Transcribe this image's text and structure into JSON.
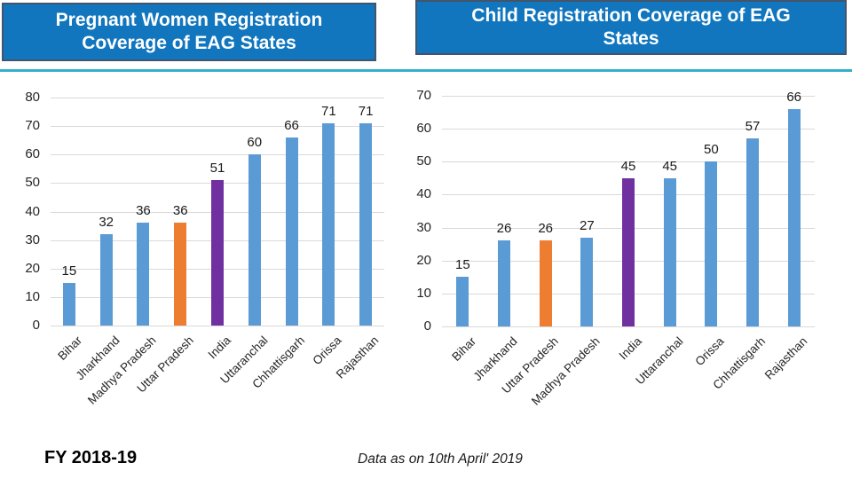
{
  "page": {
    "left_title": "Pregnant Women Registration\nCoverage of EAG States",
    "right_title": "Child Registration Coverage of EAG\nStates",
    "footer_left": "FY 2018-19",
    "footer_note": "Data as on 10th April' 2019"
  },
  "colors": {
    "title_bg": "#1176BE",
    "title_border": "#44546A",
    "divider": "#33AECD",
    "bar_default": "#5B9BD5",
    "bar_uttar_pradesh_highlight": "#ED7D31",
    "bar_india_highlight": "#7030A0",
    "gridline": "#D9D9D9"
  },
  "chart_data": [
    {
      "type": "bar",
      "title": "Pregnant Women Registration Coverage of EAG States",
      "categories": [
        "Bihar",
        "Jharkhand",
        "Madhya Pradesh",
        "Uttar Pradesh",
        "India",
        "Uttaranchal",
        "Chhattisgarh",
        "Orissa",
        "Rajasthan"
      ],
      "values": [
        15,
        32,
        36,
        36,
        51,
        60,
        66,
        71,
        71
      ],
      "bar_colors": [
        "#5B9BD5",
        "#5B9BD5",
        "#5B9BD5",
        "#ED7D31",
        "#7030A0",
        "#5B9BD5",
        "#5B9BD5",
        "#5B9BD5",
        "#5B9BD5"
      ],
      "xlabel": "",
      "ylabel": "",
      "ylim": [
        0,
        80
      ],
      "ytick_step": 10,
      "grid": true,
      "data_labels": true,
      "legend": false
    },
    {
      "type": "bar",
      "title": "Child Registration Coverage of EAG States",
      "categories": [
        "Bihar",
        "Jharkhand",
        "Uttar Pradesh",
        "Madhya Pradesh",
        "India",
        "Uttaranchal",
        "Orissa",
        "Chhattisgarh",
        "Rajasthan"
      ],
      "values": [
        15,
        26,
        26,
        27,
        45,
        45,
        50,
        57,
        66
      ],
      "bar_colors": [
        "#5B9BD5",
        "#5B9BD5",
        "#ED7D31",
        "#5B9BD5",
        "#7030A0",
        "#5B9BD5",
        "#5B9BD5",
        "#5B9BD5",
        "#5B9BD5"
      ],
      "xlabel": "",
      "ylabel": "",
      "ylim": [
        0,
        70
      ],
      "ytick_step": 10,
      "grid": true,
      "data_labels": true,
      "legend": false
    }
  ]
}
